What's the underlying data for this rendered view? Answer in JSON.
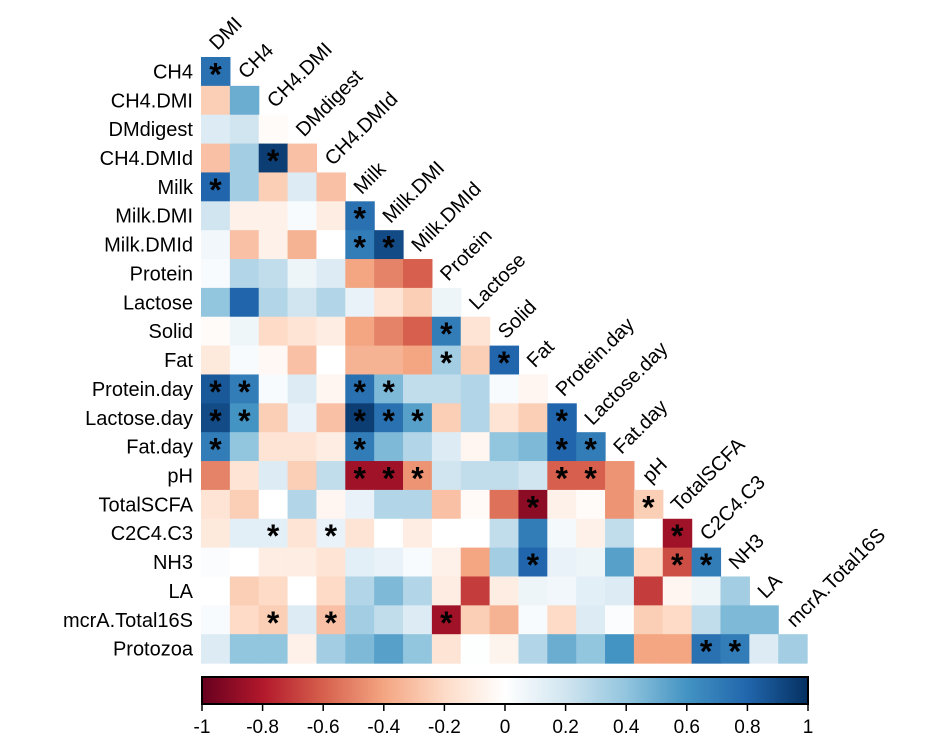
{
  "chart_data": {
    "type": "heatmap",
    "title": "",
    "row_labels": [
      "CH4",
      "CH4.DMI",
      "DMdigest",
      "CH4.DMId",
      "Milk",
      "Milk.DMI",
      "Milk.DMId",
      "Protein",
      "Lactose",
      "Solid",
      "Fat",
      "Protein.day",
      "Lactose.day",
      "Fat.day",
      "pH",
      "TotalSCFA",
      "C2C4.C3",
      "NH3",
      "LA",
      "mcrA.Total16S",
      "Protozoa"
    ],
    "column_labels": [
      "DMI",
      "CH4",
      "CH4.DMI",
      "DMdigest",
      "CH4.DMId",
      "Milk",
      "Milk.DMI",
      "Milk.DMId",
      "Protein",
      "Lactose",
      "Solid",
      "Fat",
      "Protein.day",
      "Lactose.day",
      "Fat.day",
      "pH",
      "TotalSCFA",
      "C2C4.C3",
      "NH3",
      "LA",
      "mcrA.Total16S"
    ],
    "values": [
      [
        0.75
      ],
      [
        -0.25,
        0.5
      ],
      [
        0.15,
        0.2,
        -0.02
      ],
      [
        -0.3,
        0.35,
        0.95,
        -0.3
      ],
      [
        0.8,
        0.35,
        -0.25,
        0.15,
        -0.3
      ],
      [
        0.2,
        -0.08,
        -0.08,
        0.03,
        -0.1,
        0.75
      ],
      [
        0.06,
        -0.3,
        -0.08,
        -0.35,
        0,
        0.7,
        0.9
      ],
      [
        0.03,
        0.3,
        0.25,
        0.08,
        0.15,
        -0.4,
        -0.5,
        -0.6
      ],
      [
        0.4,
        0.8,
        0.3,
        0.2,
        0.3,
        0.1,
        -0.15,
        -0.25,
        0.08
      ],
      [
        -0.02,
        0.07,
        -0.2,
        -0.15,
        -0.1,
        -0.4,
        -0.5,
        -0.6,
        0.7,
        -0.15
      ],
      [
        -0.12,
        0.03,
        -0.04,
        -0.3,
        0,
        -0.35,
        -0.35,
        -0.4,
        0.35,
        -0.25,
        0.8
      ],
      [
        0.85,
        0.7,
        0.03,
        0.15,
        -0.05,
        0.75,
        0.45,
        0.25,
        0.25,
        0.3,
        0.03,
        -0.05
      ],
      [
        0.9,
        0.6,
        -0.25,
        0.1,
        -0.3,
        0.95,
        0.75,
        0.55,
        -0.25,
        0.3,
        -0.15,
        -0.25,
        0.8
      ],
      [
        0.7,
        0.4,
        -0.15,
        -0.15,
        -0.1,
        0.7,
        0.45,
        0.3,
        0.15,
        -0.05,
        0.4,
        0.45,
        0.8,
        0.7
      ],
      [
        -0.5,
        -0.15,
        0.15,
        -0.25,
        0.25,
        -0.85,
        -0.85,
        -0.45,
        0.2,
        0.25,
        0.25,
        0.2,
        -0.6,
        -0.6,
        -0.45
      ],
      [
        -0.15,
        -0.25,
        0,
        0.3,
        -0.05,
        0.1,
        0.3,
        0.3,
        -0.3,
        -0.03,
        -0.55,
        -0.9,
        -0.08,
        -0.02,
        -0.45,
        -0.25
      ],
      [
        -0.12,
        0.12,
        0.12,
        -0.15,
        0.1,
        -0.15,
        0,
        -0.1,
        0,
        0,
        0.25,
        0.7,
        0.05,
        -0.08,
        0.25,
        0,
        -0.85
      ],
      [
        0.02,
        0,
        -0.1,
        -0.1,
        -0.15,
        0.12,
        0.1,
        0.03,
        -0.08,
        -0.4,
        0.35,
        0.8,
        0.1,
        0.08,
        0.55,
        -0.2,
        -0.65,
        0.7
      ],
      [
        0,
        -0.25,
        -0.2,
        0,
        -0.2,
        0.3,
        0.45,
        0.3,
        -0.1,
        -0.7,
        -0.1,
        0.08,
        0.06,
        0.12,
        0.15,
        -0.7,
        -0.05,
        0.08,
        0.35
      ],
      [
        0.03,
        -0.2,
        -0.25,
        0.15,
        -0.3,
        0.35,
        0.25,
        0.15,
        -0.85,
        -0.25,
        -0.35,
        0.03,
        -0.2,
        0.15,
        0.02,
        -0.25,
        -0.2,
        0.25,
        0.45,
        0.45
      ],
      [
        0.15,
        0.4,
        0.4,
        -0.08,
        0.35,
        0.45,
        0.55,
        0.4,
        -0.15,
        0.01,
        -0.06,
        0.3,
        0.5,
        0.4,
        0.6,
        -0.4,
        -0.4,
        0.75,
        0.7,
        0.15,
        0.35
      ]
    ],
    "significant": [
      [
        0
      ],
      [],
      [],
      [
        2
      ],
      [
        0
      ],
      [
        5
      ],
      [
        5,
        6
      ],
      [],
      [],
      [
        8
      ],
      [
        8,
        10
      ],
      [
        0,
        1,
        5,
        6
      ],
      [
        0,
        1,
        5,
        6,
        7,
        12
      ],
      [
        0,
        5,
        12,
        13
      ],
      [
        5,
        6,
        7,
        12,
        13
      ],
      [
        11,
        15
      ],
      [
        2,
        4,
        16
      ],
      [
        11,
        16,
        17
      ],
      [],
      [
        2,
        4,
        8
      ],
      [
        17,
        18
      ]
    ],
    "significance_marker": "*",
    "colorbar": {
      "range": [
        -1,
        1
      ],
      "ticks": [
        "-1",
        "-0.8",
        "-0.6",
        "-0.4",
        "-0.2",
        "0",
        "0.2",
        "0.4",
        "0.6",
        "0.8",
        "1"
      ],
      "colormap": [
        "#67001f",
        "#b2182b",
        "#d6604d",
        "#f4a582",
        "#fddbc7",
        "#ffffff",
        "#d1e5f0",
        "#92c5de",
        "#4393c3",
        "#2166ac",
        "#053061"
      ]
    },
    "layout_type": "lower-triangle"
  }
}
